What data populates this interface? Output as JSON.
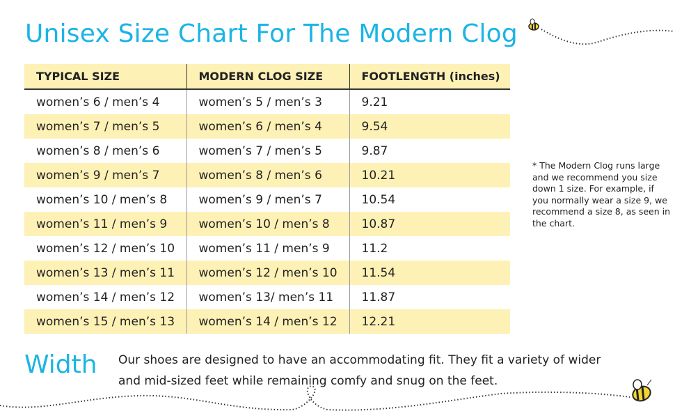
{
  "title": "Unisex Size Chart For The Modern Clog",
  "table": {
    "headers": [
      "TYPICAL SIZE",
      "MODERN CLOG SIZE",
      "FOOTLENGTH (inches)"
    ],
    "rows": [
      [
        "women’s 6 / men’s 4",
        "women’s 5 / men’s 3",
        "9.21"
      ],
      [
        "women’s 7 / men’s 5",
        "women’s 6 / men’s 4",
        "9.54"
      ],
      [
        "women’s 8 / men’s 6",
        "women’s 7 / men’s 5",
        "9.87"
      ],
      [
        "women’s 9 / men’s 7",
        "women’s 8 / men’s 6",
        "10.21"
      ],
      [
        "women’s 10 / men’s 8",
        "women’s 9 / men’s 7",
        "10.54"
      ],
      [
        "women’s 11 / men’s 9",
        "women’s 10 / men’s 8",
        "10.87"
      ],
      [
        "women’s 12 / men’s 10",
        "women’s 11 / men’s 9",
        "11.2"
      ],
      [
        "women’s 13 / men’s 11",
        "women’s 12 / men’s 10",
        "11.54"
      ],
      [
        "women’s 14 / men’s 12",
        "women’s 13/ men’s 11",
        "11.87"
      ],
      [
        "women’s 15 / men’s 13",
        "women’s 14 / men’s 12",
        "12.21"
      ]
    ]
  },
  "note": "* The Modern Clog runs large and we recommend you size down 1 size. For example, if you normally wear a size 9, we recommend a size 8, as seen in the chart.",
  "width": {
    "label": "Width",
    "text": "Our shoes are designed to have an accommodating fit. They fit a variety of wider and mid-sized feet while remaining comfy and snug on the feet."
  },
  "colors": {
    "accent": "#1bb4e4",
    "highlight": "#fdf1b6"
  }
}
